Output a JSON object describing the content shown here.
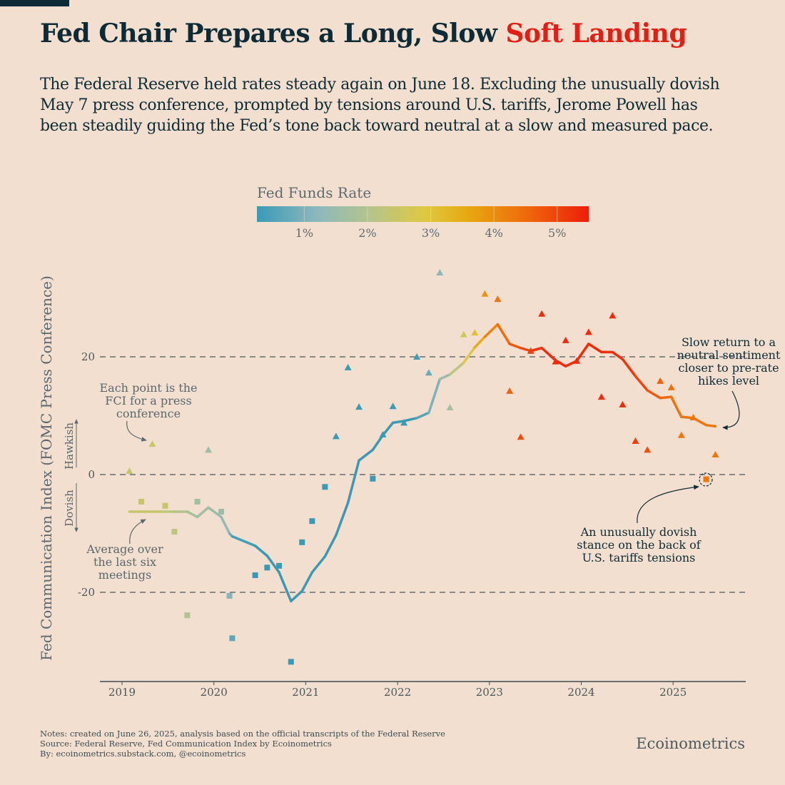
{
  "header": {
    "title_main": "Fed Chair Prepares a Long, Slow ",
    "title_accent": "Soft Landing",
    "subtitle": "The Federal Reserve held rates steady again on June 18. Excluding the unusually dovish May 7 press conference, prompted by tensions around U.S. tariffs, Jerome Powell has been steadily guiding the Fed’s tone back toward neutral at a slow and measured pace."
  },
  "colors": {
    "title": "#0d2b36",
    "accent": "#e41e12",
    "background": "#f2dfcf"
  },
  "legend": {
    "title": "Fed Funds Rate",
    "ticks": [
      "1%",
      "2%",
      "3%",
      "4%",
      "5%"
    ],
    "tick_values": [
      1,
      2,
      3,
      4,
      5
    ],
    "range": [
      0.25,
      5.5
    ],
    "stops": [
      [
        0.25,
        "#3a9ab6"
      ],
      [
        1.2,
        "#8db8bd"
      ],
      [
        2.0,
        "#b2c48e"
      ],
      [
        2.9,
        "#dfc843"
      ],
      [
        3.6,
        "#e6a810"
      ],
      [
        4.5,
        "#ef6a0c"
      ],
      [
        5.5,
        "#ee1d0a"
      ]
    ]
  },
  "annotations": {
    "each_point": "Each point is the FCI for a press conference",
    "average": "Average over the last six meetings",
    "slow_return": "Slow return to a neutral sentiment closer to pre-rate hikes level",
    "dovish_stance": "An unusually dovish stance on the back of U.S. tariffs tensions",
    "hawkish": "Hawkish",
    "dovish": "Dovish"
  },
  "chart_data": {
    "type": "scatter",
    "title": "Fed Chair Prepares a Long, Slow Soft Landing",
    "xlabel": "",
    "ylabel": "Fed Communication Index (FOMC Press Conference)",
    "xlim": [
      2018.77,
      2025.8
    ],
    "ylim": [
      -35,
      37
    ],
    "x_ticks": [
      2019,
      2020,
      2021,
      2022,
      2023,
      2024,
      2025
    ],
    "x_tick_labels": [
      "2019",
      "2020",
      "2021",
      "2022",
      "2023",
      "2024",
      "2025"
    ],
    "y_ticks": [
      -20,
      0,
      20
    ],
    "y_tick_labels": [
      "-20",
      "0",
      "20"
    ],
    "grid": "dashed horizontal at y ticks",
    "marker_legend": {
      "triangle": "FCI >= 0 (hawkish)",
      "square": "FCI < 0 (dovish)"
    },
    "series": [
      {
        "name": "FCI per press conference",
        "fields": [
          "date",
          "fci",
          "rate"
        ],
        "points": [
          [
            2019.08,
            0.6,
            2.4
          ],
          [
            2019.21,
            -4.6,
            2.4
          ],
          [
            2019.33,
            5.2,
            2.4
          ],
          [
            2019.47,
            -5.3,
            2.4
          ],
          [
            2019.57,
            -9.7,
            2.15
          ],
          [
            2019.71,
            -23.9,
            1.95
          ],
          [
            2019.82,
            -4.6,
            1.65
          ],
          [
            2019.94,
            4.2,
            1.55
          ],
          [
            2020.08,
            -6.3,
            1.55
          ],
          [
            2020.17,
            -20.6,
            1.1
          ],
          [
            2020.2,
            -27.8,
            0.65
          ],
          [
            2020.45,
            -17.1,
            0.1
          ],
          [
            2020.58,
            -15.8,
            0.1
          ],
          [
            2020.71,
            -15.5,
            0.1
          ],
          [
            2020.84,
            -31.8,
            0.1
          ],
          [
            2020.96,
            -11.5,
            0.1
          ],
          [
            2021.07,
            -7.9,
            0.1
          ],
          [
            2021.21,
            -2.1,
            0.1
          ],
          [
            2021.33,
            6.5,
            0.1
          ],
          [
            2021.46,
            18.2,
            0.1
          ],
          [
            2021.58,
            11.5,
            0.1
          ],
          [
            2021.73,
            -0.7,
            0.1
          ],
          [
            2021.84,
            6.8,
            0.1
          ],
          [
            2021.95,
            11.6,
            0.1
          ],
          [
            2022.07,
            8.8,
            0.1
          ],
          [
            2022.21,
            20.0,
            0.33
          ],
          [
            2022.34,
            17.3,
            0.8
          ],
          [
            2022.46,
            34.3,
            1.2
          ],
          [
            2022.57,
            11.4,
            1.7
          ],
          [
            2022.72,
            23.8,
            2.6
          ],
          [
            2022.84,
            24.1,
            3.1
          ],
          [
            2022.95,
            30.7,
            3.9
          ],
          [
            2023.09,
            29.8,
            4.35
          ],
          [
            2023.22,
            14.2,
            4.6
          ],
          [
            2023.34,
            6.4,
            4.85
          ],
          [
            2023.45,
            21.0,
            5.1
          ],
          [
            2023.57,
            27.3,
            5.3
          ],
          [
            2023.72,
            19.2,
            5.3
          ],
          [
            2023.83,
            22.8,
            5.3
          ],
          [
            2023.95,
            19.3,
            5.3
          ],
          [
            2024.08,
            24.2,
            5.3
          ],
          [
            2024.22,
            13.2,
            5.3
          ],
          [
            2024.34,
            27.0,
            5.3
          ],
          [
            2024.45,
            11.9,
            5.3
          ],
          [
            2024.59,
            5.7,
            5.1
          ],
          [
            2024.72,
            4.2,
            4.85
          ],
          [
            2024.86,
            15.9,
            4.6
          ],
          [
            2024.98,
            14.8,
            4.4
          ],
          [
            2025.09,
            6.7,
            4.33
          ],
          [
            2025.22,
            9.7,
            4.33
          ],
          [
            2025.36,
            -0.8,
            4.33
          ],
          [
            2025.46,
            3.4,
            4.33
          ]
        ]
      },
      {
        "name": "Average over the last six meetings",
        "values": [
          -6.3,
          -6.3,
          -6.3,
          -6.3,
          -6.3,
          -6.3,
          -7.2,
          -5.6,
          -7.2,
          -10.0,
          -10.5,
          -12.1,
          -13.8,
          -16.6,
          -21.5,
          -19.8,
          -16.6,
          -13.9,
          -10.3,
          -4.8,
          2.4,
          4.2,
          6.7,
          8.8,
          9.1,
          9.6,
          10.5,
          16.2,
          17.0,
          19.0,
          21.6,
          23.4,
          25.5,
          22.2,
          21.5,
          21.0,
          21.5,
          19.4,
          18.4,
          19.3,
          22.2,
          20.8,
          20.8,
          19.6,
          16.7,
          14.3,
          13.0,
          13.2,
          9.8,
          9.6,
          8.4,
          8.2
        ]
      }
    ],
    "highlighted_point": [
      2025.36,
      -0.8
    ]
  },
  "footer": {
    "notes": "Notes: created on June 26, 2025, analysis based on the official transcripts of the Federal Reserve",
    "source": "Source: Federal Reserve, Fed Communication Index by Ecoinometrics",
    "by": "By: ecoinometrics.substack.com, @ecoinometrics",
    "brand": "Ecoinometrics"
  }
}
